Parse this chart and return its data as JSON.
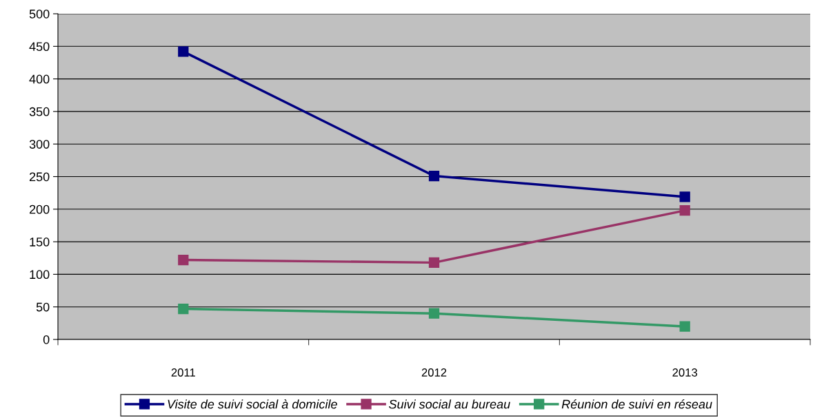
{
  "chart_data": {
    "type": "line",
    "categories": [
      "2011",
      "2012",
      "2013"
    ],
    "series": [
      {
        "name": "Visite de suivi social à domicile",
        "color": "#000080",
        "values": [
          442,
          251,
          219
        ]
      },
      {
        "name": "Suivi social au bureau",
        "color": "#993366",
        "values": [
          122,
          118,
          198
        ]
      },
      {
        "name": "Réunion de suivi en réseau",
        "color": "#339966",
        "values": [
          47,
          40,
          20
        ]
      }
    ],
    "ylim": [
      0,
      500
    ],
    "yticks": [
      0,
      50,
      100,
      150,
      200,
      250,
      300,
      350,
      400,
      450,
      500
    ],
    "grid": "y",
    "legend": "bottom",
    "marker": "square",
    "line_style": "solid"
  }
}
